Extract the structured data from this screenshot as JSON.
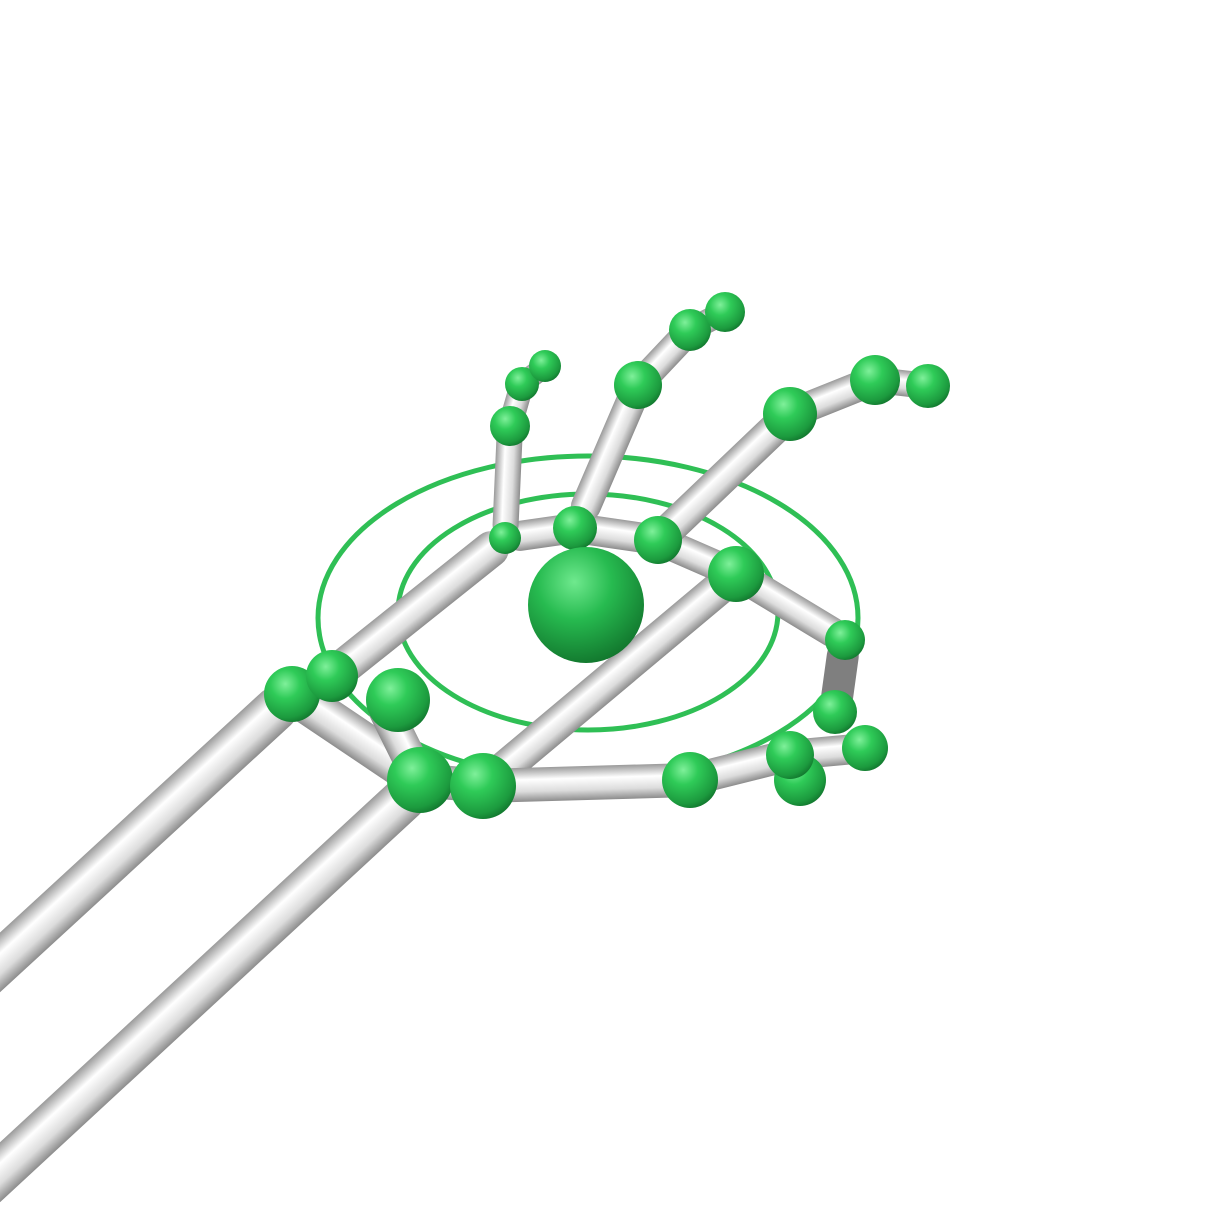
{
  "scene": {
    "subject": "hand-skeleton",
    "background_color": "#ffffff",
    "bone_color": "#e6e6e6",
    "joint_color": "#22b24c",
    "palm_center_color": "#1fa846",
    "orbit_ring_color": "#2fbf55",
    "thumb_segment_color": "#7f7f7f"
  }
}
